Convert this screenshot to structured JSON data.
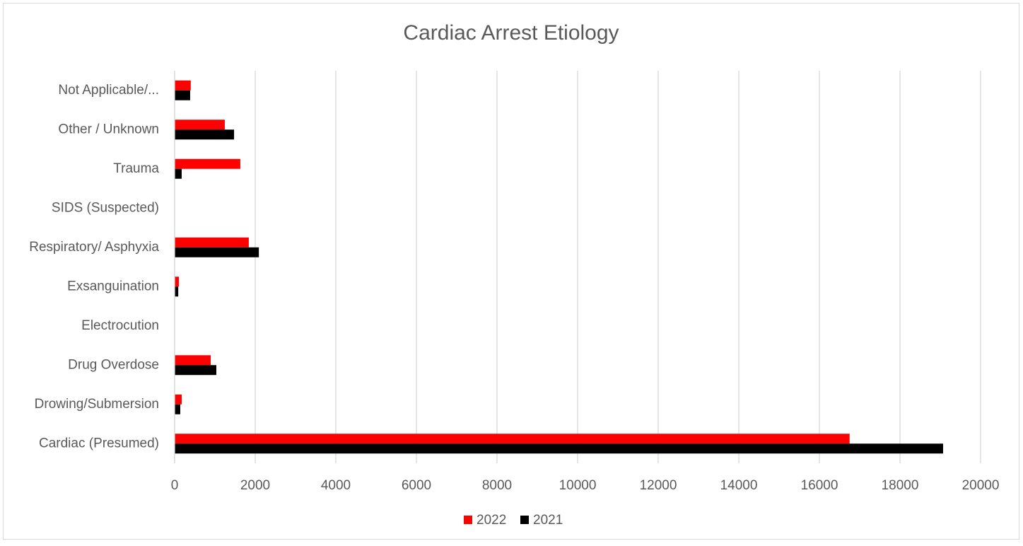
{
  "chart_data": {
    "type": "hbar",
    "title": "Cardiac Arrest Etiology",
    "categories": [
      "Cardiac (Presumed)",
      "Drowing/Submersion",
      "Drug Overdose",
      "Electrocution",
      "Exsanguination",
      "Respiratory/ Asphyxia",
      "SIDS (Suspected)",
      "Trauma",
      "Other / Unknown",
      "Not Applicable/..."
    ],
    "series": [
      {
        "name": "2022",
        "color": "#ff0000",
        "values": [
          16750,
          175,
          895,
          0,
          105,
          1840,
          0,
          1630,
          1245,
          400
        ]
      },
      {
        "name": "2021",
        "color": "#000000",
        "values": [
          19070,
          140,
          1035,
          0,
          90,
          2090,
          0,
          175,
          1475,
          385
        ]
      }
    ],
    "xlim": [
      0,
      20000
    ],
    "xticks": [
      0,
      2000,
      4000,
      6000,
      8000,
      10000,
      12000,
      14000,
      16000,
      18000,
      20000
    ],
    "grid": true,
    "legend": "bottom"
  }
}
